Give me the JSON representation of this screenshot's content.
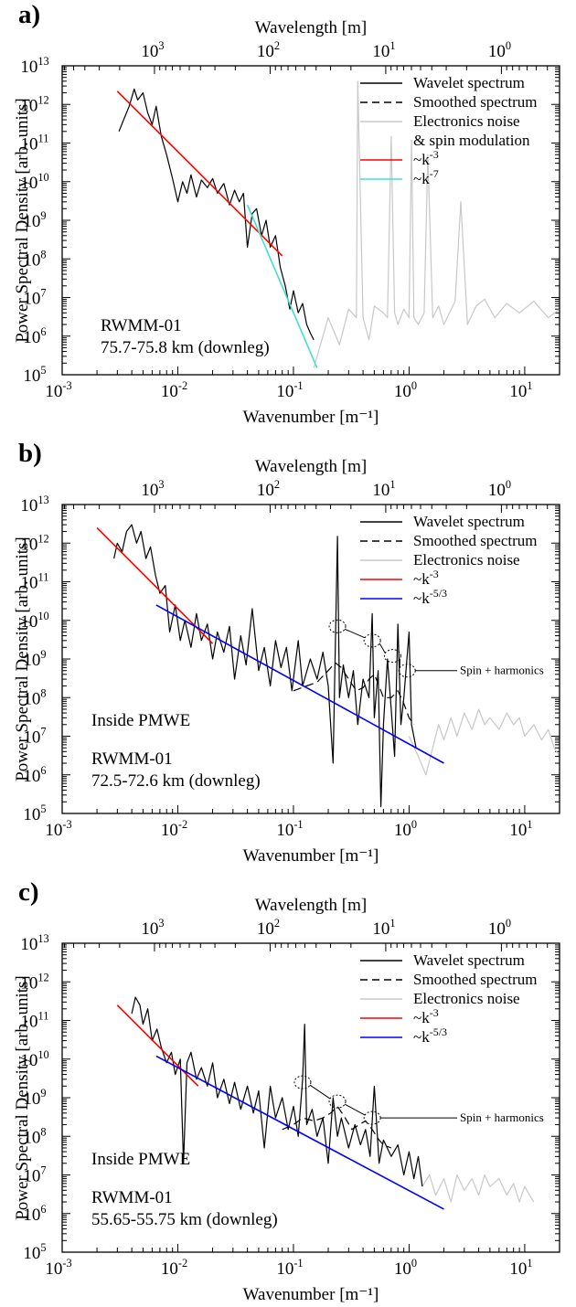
{
  "figure": {
    "panel_labels": [
      "a)",
      "b)",
      "c)"
    ]
  },
  "chart_data": [
    {
      "type": "line",
      "panel": "a)",
      "x_scale": "log",
      "y_scale": "log",
      "xlabel": "Wavenumber [m⁻¹]",
      "ylabel": "Power Spectral Density [arb. units]",
      "top_xlabel": "Wavelength [m]",
      "xlim": [
        0.001,
        20
      ],
      "ylim": [
        100000.0,
        10000000000000.0
      ],
      "x_tick_labels": [
        "10-3",
        "10-2",
        "10-1",
        "100",
        "101"
      ],
      "y_tick_labels": [
        "105",
        "106",
        "107",
        "108",
        "109",
        "1010",
        "1011",
        "1012",
        "1013"
      ],
      "top_tick_labels": [
        "103",
        "102",
        "101",
        "100"
      ],
      "annotations": [
        "RWMM-01",
        "75.7-75.8 km (downleg)"
      ],
      "legend": [
        "Wavelet spectrum",
        "Smoothed spectrum",
        "Electronics noise",
        "& spin modulation",
        "~k-3",
        "~k-7"
      ],
      "series": [
        {
          "name": "Wavelet spectrum",
          "color": "#000000",
          "x": [
            0.0031,
            0.0034,
            0.0038,
            0.0042,
            0.0045,
            0.005,
            0.0055,
            0.006,
            0.0065,
            0.0072,
            0.008,
            0.009,
            0.01,
            0.011,
            0.012,
            0.013,
            0.0145,
            0.016,
            0.018,
            0.02,
            0.022,
            0.025,
            0.028,
            0.031,
            0.034,
            0.037,
            0.04,
            0.044,
            0.048,
            0.053,
            0.058,
            0.063,
            0.07,
            0.077,
            0.085,
            0.093,
            0.1,
            0.11,
            0.12,
            0.13,
            0.14,
            0.15
          ],
          "y": [
            200000000000.0,
            400000000000.0,
            900000000000.0,
            2500000000000.0,
            1300000000000.0,
            2000000000000.0,
            600000000000.0,
            300000000000.0,
            900000000000.0,
            150000000000.0,
            50000000000.0,
            12000000000.0,
            3000000000.0,
            10000000000.0,
            5000000000.0,
            15000000000.0,
            4000000000.0,
            11000000000.0,
            7000000000.0,
            12000000000.0,
            5000000000.0,
            9000000000.0,
            2500000000.0,
            6000000000.0,
            3000000000.0,
            5000000000.0,
            200000000.0,
            1500000000.0,
            2000000000.0,
            400000000.0,
            1000000000.0,
            200000000.0,
            400000000.0,
            60000000.0,
            20000000.0,
            5000000.0,
            15000000.0,
            4000000.0,
            7000000.0,
            2000000.0,
            1200000.0,
            800000.0
          ]
        },
        {
          "name": "Electronics noise & spin modulation",
          "color": "#c8c8c8",
          "x": [
            0.15,
            0.2,
            0.25,
            0.3,
            0.35,
            0.36,
            0.4,
            0.45,
            0.5,
            0.6,
            0.65,
            0.7,
            0.75,
            0.8,
            0.9,
            1.0,
            1.05,
            1.1,
            1.2,
            1.35,
            1.45,
            1.6,
            1.8,
            2.0,
            2.5,
            2.8,
            3.2,
            3.8,
            4.5,
            5.5,
            7,
            9,
            12,
            16,
            20
          ],
          "y": [
            150000.0,
            3000000.0,
            600000.0,
            5000000.0,
            3000000.0,
            4000000000000.0,
            3000000.0,
            800000.0,
            6000000.0,
            4000000.0,
            3000000.0,
            150000000000.0,
            4000000.0,
            2000000.0,
            5000000.0,
            3000000.0,
            120000000000.0,
            3000000.0,
            2000000.0,
            4000000.0,
            50000000000.0,
            3000000.0,
            6000000.0,
            2000000.0,
            8000000.0,
            3000000000.0,
            2000000.0,
            6000000.0,
            9000000.0,
            3000000.0,
            7000000.0,
            4000000.0,
            8000000.0,
            3000000.0,
            5000000.0
          ]
        },
        {
          "name": "~k-3",
          "color": "#ff0000",
          "x": [
            0.003,
            0.08
          ],
          "y": [
            2200000000000.0,
            120000000.0
          ]
        },
        {
          "name": "~k-7",
          "color": "#40e0d0",
          "x": [
            0.04,
            0.16
          ],
          "y": [
            2500000000.0,
            150000.0
          ]
        }
      ]
    },
    {
      "type": "line",
      "panel": "b)",
      "x_scale": "log",
      "y_scale": "log",
      "xlabel": "Wavenumber [m⁻¹]",
      "ylabel": "Power Spectral Density [arb. units]",
      "top_xlabel": "Wavelength [m]",
      "xlim": [
        0.001,
        20
      ],
      "ylim": [
        100000.0,
        10000000000000.0
      ],
      "x_tick_labels": [
        "10-3",
        "10-2",
        "10-1",
        "100",
        "101"
      ],
      "y_tick_labels": [
        "105",
        "106",
        "107",
        "108",
        "109",
        "1010",
        "1011",
        "1012",
        "1013"
      ],
      "top_tick_labels": [
        "103",
        "102",
        "101",
        "100"
      ],
      "annotations": [
        "Inside PMWE",
        "RWMM-01",
        "72.5-72.6 km (downleg)",
        "Spin + harmonics"
      ],
      "legend": [
        "Wavelet spectrum",
        "Smoothed spectrum",
        "Electronics noise",
        "~k-3",
        "~k-5/3"
      ],
      "series": [
        {
          "name": "Wavelet spectrum",
          "color": "#000000",
          "x": [
            0.0028,
            0.003,
            0.0033,
            0.0036,
            0.004,
            0.0044,
            0.0048,
            0.0053,
            0.0058,
            0.0064,
            0.007,
            0.0078,
            0.0085,
            0.0095,
            0.0105,
            0.0115,
            0.013,
            0.0145,
            0.016,
            0.018,
            0.02,
            0.022,
            0.025,
            0.028,
            0.031,
            0.035,
            0.039,
            0.044,
            0.05,
            0.056,
            0.063,
            0.07,
            0.078,
            0.087,
            0.097,
            0.11,
            0.12,
            0.14,
            0.16,
            0.18,
            0.2,
            0.22,
            0.24,
            0.25,
            0.27,
            0.3,
            0.33,
            0.36,
            0.4,
            0.45,
            0.48,
            0.5,
            0.54,
            0.57,
            0.6,
            0.65,
            0.7,
            0.75,
            0.8,
            0.85,
            0.9,
            1.0,
            1.05,
            1.15
          ],
          "y": [
            400000000000.0,
            1000000000000.0,
            600000000000.0,
            2000000000000.0,
            3000000000000.0,
            1000000000000.0,
            2000000000000.0,
            400000000000.0,
            800000000000.0,
            150000000000.0,
            50000000000.0,
            80000000000.0,
            5000000000.0,
            25000000000.0,
            3000000000.0,
            10000000000.0,
            2000000000.0,
            15000000000.0,
            3000000000.0,
            8000000000.0,
            1000000000.0,
            5000000000.0,
            1500000000.0,
            7000000000.0,
            300000000.0,
            4000000000.0,
            700000000.0,
            20000000000.0,
            500000000.0,
            2000000000.0,
            200000000.0,
            3000000000.0,
            600000000.0,
            2000000000.0,
            150000000.0,
            3000000000.0,
            200000000.0,
            1000000000.0,
            300000000.0,
            1500000000.0,
            200000000.0,
            2000000.0,
            1500000000000.0,
            100000000.0,
            700000000.0,
            100000000.0,
            500000000.0,
            20000000.0,
            300000000.0,
            100000000.0,
            15000000000.0,
            30000000.0,
            500000000.0,
            150000.0,
            20000000.0,
            1000000000.0,
            50000000.0,
            3000000.0,
            8000000000.0,
            20000000.0,
            100000000.0,
            5000000000.0,
            20000000.0,
            5000000.0
          ]
        },
        {
          "name": "Smoothed spectrum",
          "color": "#000000",
          "dashed": true,
          "x": [
            0.1,
            0.13,
            0.16,
            0.2,
            0.23,
            0.26,
            0.3,
            0.35,
            0.4,
            0.45,
            0.5,
            0.55,
            0.6,
            0.7,
            0.8,
            0.9,
            1.0,
            1.1
          ],
          "y": [
            150000000.0,
            200000000.0,
            250000000.0,
            500000000.0,
            800000000.0,
            600000000.0,
            300000000.0,
            150000000.0,
            180000000.0,
            300000000.0,
            400000000.0,
            200000000.0,
            100000000.0,
            100000000.0,
            150000000.0,
            70000000.0,
            30000000.0,
            20000000.0
          ]
        },
        {
          "name": "Electronics noise",
          "color": "#c8c8c8",
          "x": [
            1.0,
            1.2,
            1.4,
            1.6,
            1.8,
            2.0,
            2.3,
            2.6,
            3.0,
            3.5,
            4.0,
            4.5,
            5,
            6,
            7,
            8,
            9,
            10,
            12,
            14,
            16,
            18,
            20
          ],
          "y": [
            10000000.0,
            3000000.0,
            1000000.0,
            5000000.0,
            20000000.0,
            8000000.0,
            30000000.0,
            10000000.0,
            40000000.0,
            15000000.0,
            50000000.0,
            20000000.0,
            30000000.0,
            15000000.0,
            40000000.0,
            20000000.0,
            30000000.0,
            10000000.0,
            20000000.0,
            8000000.0,
            15000000.0,
            5000000.0,
            3000000.0
          ]
        },
        {
          "name": "~k-3",
          "color": "#ff0000",
          "x": [
            0.002,
            0.02
          ],
          "y": [
            2500000000000.0,
            2500000000.0
          ]
        },
        {
          "name": "~k-5/3",
          "color": "#0000ff",
          "x": [
            0.0065,
            2.0
          ],
          "y": [
            25000000000.0,
            2000000.0
          ]
        }
      ],
      "spin_markers": {
        "x": [
          0.24,
          0.48,
          0.72,
          0.96
        ],
        "y": [
          7000000000.0,
          3000000000.0,
          1200000000.0,
          500000000.0
        ]
      }
    },
    {
      "type": "line",
      "panel": "c)",
      "x_scale": "log",
      "y_scale": "log",
      "xlabel": "Wavenumber [m⁻¹]",
      "ylabel": "Power Spectral Density [arb. units]",
      "top_xlabel": "Wavelength [m]",
      "xlim": [
        0.001,
        20
      ],
      "ylim": [
        100000.0,
        10000000000000.0
      ],
      "x_tick_labels": [
        "10-3",
        "10-2",
        "10-1",
        "100",
        "101"
      ],
      "y_tick_labels": [
        "105",
        "106",
        "107",
        "108",
        "109",
        "1010",
        "1011",
        "1012",
        "1013"
      ],
      "top_tick_labels": [
        "103",
        "102",
        "101",
        "100"
      ],
      "annotations": [
        "Inside PMWE",
        "RWMM-01",
        "55.65-55.75 km (downleg)",
        "Spin + harmonics"
      ],
      "legend": [
        "Wavelet spectrum",
        "Smoothed spectrum",
        "Electronics noise",
        "~k-3",
        "~k-5/3"
      ],
      "series": [
        {
          "name": "Wavelet spectrum",
          "color": "#000000",
          "x": [
            0.004,
            0.0043,
            0.0047,
            0.005,
            0.0055,
            0.006,
            0.0066,
            0.0072,
            0.008,
            0.0088,
            0.0095,
            0.0105,
            0.0112,
            0.012,
            0.013,
            0.0145,
            0.016,
            0.018,
            0.02,
            0.022,
            0.025,
            0.028,
            0.031,
            0.035,
            0.04,
            0.045,
            0.05,
            0.056,
            0.063,
            0.07,
            0.08,
            0.09,
            0.1,
            0.11,
            0.12,
            0.125,
            0.13,
            0.145,
            0.16,
            0.18,
            0.2,
            0.22,
            0.24,
            0.26,
            0.3,
            0.34,
            0.38,
            0.42,
            0.46,
            0.5,
            0.55,
            0.6,
            0.7,
            0.8,
            0.9,
            1.0,
            1.1,
            1.2,
            1.3
          ],
          "y": [
            150000000000.0,
            400000000000.0,
            250000000000.0,
            80000000000.0,
            200000000000.0,
            30000000000.0,
            60000000000.0,
            20000000000.0,
            8000000000.0,
            15000000000.0,
            4000000000.0,
            10000000000.0,
            20000000.0,
            8000000000.0,
            15000000000.0,
            3000000000.0,
            6000000000.0,
            2000000000.0,
            8000000000.0,
            1000000000.0,
            3000000000.0,
            700000000.0,
            2500000000.0,
            500000000.0,
            2000000000.0,
            400000000.0,
            1500000000.0,
            50000000.0,
            2000000000.0,
            300000000.0,
            1000000000.0,
            150000000.0,
            600000000.0,
            100000000.0,
            3000000000.0,
            80000000000.0,
            200000000.0,
            500000000.0,
            100000000.0,
            300000000.0,
            20000000.0,
            1000000000.0,
            100000000.0,
            300000000.0,
            50000000.0,
            200000000.0,
            60000000.0,
            150000000.0,
            30000000.0,
            2000000000.0,
            20000000.0,
            80000000.0,
            30000000.0,
            60000000.0,
            10000000.0,
            40000000.0,
            8000000.0,
            30000000.0,
            5000000.0
          ]
        },
        {
          "name": "Smoothed spectrum",
          "color": "#000000",
          "dashed": true,
          "x": [
            0.08,
            0.1,
            0.12,
            0.15,
            0.18,
            0.21,
            0.24,
            0.28,
            0.32,
            0.37,
            0.42,
            0.48,
            0.55,
            0.6,
            0.7
          ],
          "y": [
            150000000.0,
            200000000.0,
            300000000.0,
            250000000.0,
            300000000.0,
            400000000.0,
            600000000.0,
            300000000.0,
            150000000.0,
            200000000.0,
            250000000.0,
            150000000.0,
            80000000.0,
            60000000.0,
            50000000.0
          ]
        },
        {
          "name": "Electronics noise",
          "color": "#c8c8c8",
          "x": [
            1.3,
            1.5,
            1.7,
            2.0,
            2.3,
            2.6,
            3.0,
            3.5,
            4,
            4.5,
            5,
            6,
            7,
            8,
            9,
            10,
            11,
            12
          ],
          "y": [
            5000000.0,
            10000000.0,
            3000000.0,
            8000000.0,
            2000000.0,
            10000000.0,
            4000000.0,
            8000000.0,
            3000000.0,
            10000000.0,
            5000000.0,
            8000000.0,
            3000000.0,
            6000000.0,
            2000000.0,
            5000000.0,
            3000000.0,
            2000000.0
          ]
        },
        {
          "name": "~k-3",
          "color": "#ff0000",
          "x": [
            0.003,
            0.015
          ],
          "y": [
            250000000000.0,
            2000000000.0
          ]
        },
        {
          "name": "~k-5/3",
          "color": "#0000ff",
          "x": [
            0.0065,
            2.0
          ],
          "y": [
            12000000000.0,
            1300000.0
          ]
        }
      ],
      "spin_markers": {
        "x": [
          0.12,
          0.24,
          0.48
        ],
        "y": [
          2500000000.0,
          800000000.0,
          300000000.0
        ]
      }
    }
  ]
}
